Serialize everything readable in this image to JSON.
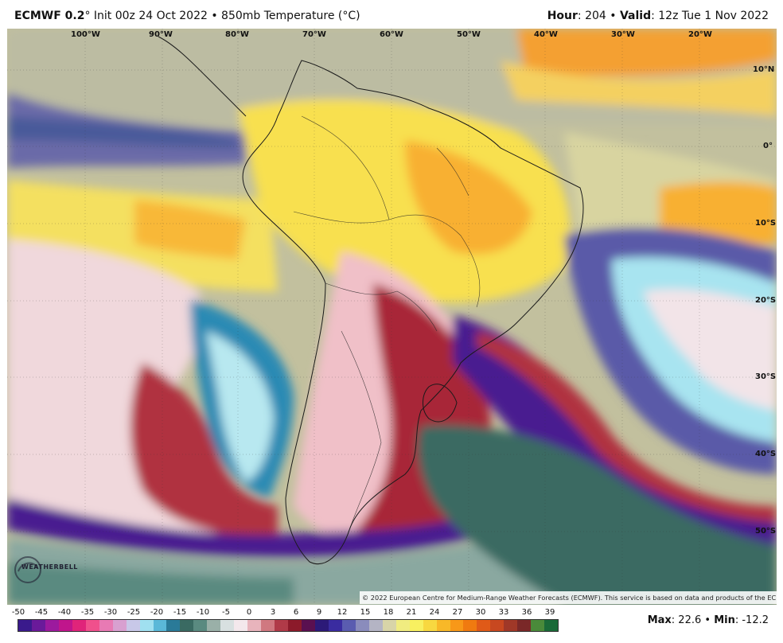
{
  "header": {
    "model": "ECMWF 0.2",
    "degree": "°",
    "init": " Init 00z 24 Oct 2022 • 850mb Temperature (°C)",
    "hour_label": "Hour",
    "hour_value": ": 204 • ",
    "valid_label": "Valid",
    "valid_value": ": 12z Tue 1 Nov 2022"
  },
  "map": {
    "longitude_labels": [
      "100°W",
      "90°W",
      "80°W",
      "70°W",
      "60°W",
      "50°W",
      "40°W",
      "30°W",
      "20°W"
    ],
    "latitude_labels": [
      "10°N",
      "0°",
      "10°S",
      "20°S",
      "30°S",
      "40°S",
      "50°S"
    ],
    "credit": "© 2022 European Centre for Medium-Range Weather Forecasts (ECMWF). This service is based on data and products of the ECMWF.",
    "logo_text": "WEATHERBELL"
  },
  "colorbar": {
    "labels": [
      "-50",
      "-45",
      "-40",
      "-35",
      "-30",
      "-25",
      "-20",
      "-15",
      "-10",
      "-5",
      "0",
      "3",
      "6",
      "9",
      "12",
      "15",
      "18",
      "21",
      "24",
      "27",
      "30",
      "33",
      "36",
      "39"
    ],
    "colors": [
      "#3a1a8c",
      "#6a1a9a",
      "#9c1a9e",
      "#c0158c",
      "#e0247a",
      "#f0508c",
      "#e87ab4",
      "#d8a0d0",
      "#c8c8e8",
      "#a0e0f0",
      "#5ab8d8",
      "#2a7a98",
      "#3a6a62",
      "#5a8a80",
      "#9ab0a8",
      "#d8e0e0",
      "#f4e8ec",
      "#e8b4bc",
      "#d07880",
      "#b03a48",
      "#8c1a2a",
      "#5a1050",
      "#2c1a78",
      "#3a2ca0",
      "#5a5cb0",
      "#8a8cbc",
      "#b4b4c4",
      "#d8d4a8",
      "#f0ec80",
      "#f8f060",
      "#f8d840",
      "#f8b828",
      "#f89818",
      "#f07a10",
      "#e05a18",
      "#c84820",
      "#a03828",
      "#7a2828",
      "#4a8a3a",
      "#1a6a38"
    ],
    "max_label": "Max",
    "max_value": ": 22.6 • ",
    "min_label": "Min",
    "min_value": ": -12.2"
  }
}
